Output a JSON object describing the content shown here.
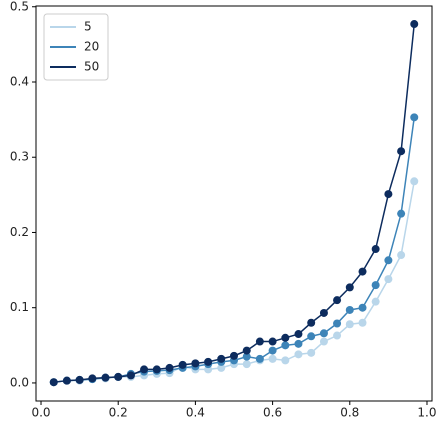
{
  "chart_data": {
    "type": "line",
    "legend": "upper left",
    "grid": false,
    "xlim": [
      -0.013,
      1.013
    ],
    "ylim": [
      -0.024,
      0.501
    ],
    "xticks": [
      {
        "value": 0,
        "label": "0.0"
      },
      0.2,
      0.4,
      0.6,
      0.8,
      {
        "value": 1,
        "label": "1.0"
      }
    ],
    "yticks": [
      {
        "value": 0,
        "label": "0.0"
      },
      0.1,
      0.2,
      0.3,
      0.4,
      0.5
    ],
    "x": [
      0.033,
      0.067,
      0.1,
      0.133,
      0.167,
      0.2,
      0.233,
      0.267,
      0.3,
      0.333,
      0.367,
      0.4,
      0.433,
      0.467,
      0.5,
      0.533,
      0.567,
      0.6,
      0.633,
      0.667,
      0.7,
      0.733,
      0.767,
      0.8,
      0.833,
      0.867,
      0.9,
      0.933,
      0.967
    ],
    "series": [
      {
        "name": "5",
        "color": "#b9d6ea",
        "values": [
          0.001,
          0.003,
          0.003,
          0.005,
          0.006,
          0.008,
          0.008,
          0.01,
          0.012,
          0.013,
          0.022,
          0.018,
          0.018,
          0.02,
          0.025,
          0.025,
          0.03,
          0.032,
          0.03,
          0.038,
          0.04,
          0.055,
          0.063,
          0.078,
          0.08,
          0.108,
          0.138,
          0.17,
          0.268
        ]
      },
      {
        "name": "20",
        "color": "#3d84b8",
        "values": [
          0.001,
          0.003,
          0.004,
          0.005,
          0.007,
          0.008,
          0.012,
          0.015,
          0.016,
          0.017,
          0.02,
          0.022,
          0.025,
          0.028,
          0.03,
          0.035,
          0.032,
          0.043,
          0.05,
          0.052,
          0.062,
          0.066,
          0.079,
          0.097,
          0.1,
          0.13,
          0.163,
          0.225,
          0.353
        ]
      },
      {
        "name": "50",
        "color": "#0d2c5e",
        "values": [
          0.001,
          0.003,
          0.004,
          0.006,
          0.007,
          0.008,
          0.01,
          0.018,
          0.018,
          0.02,
          0.024,
          0.026,
          0.028,
          0.032,
          0.036,
          0.043,
          0.055,
          0.055,
          0.06,
          0.065,
          0.08,
          0.093,
          0.11,
          0.127,
          0.148,
          0.178,
          0.251,
          0.308,
          0.477
        ]
      }
    ]
  }
}
